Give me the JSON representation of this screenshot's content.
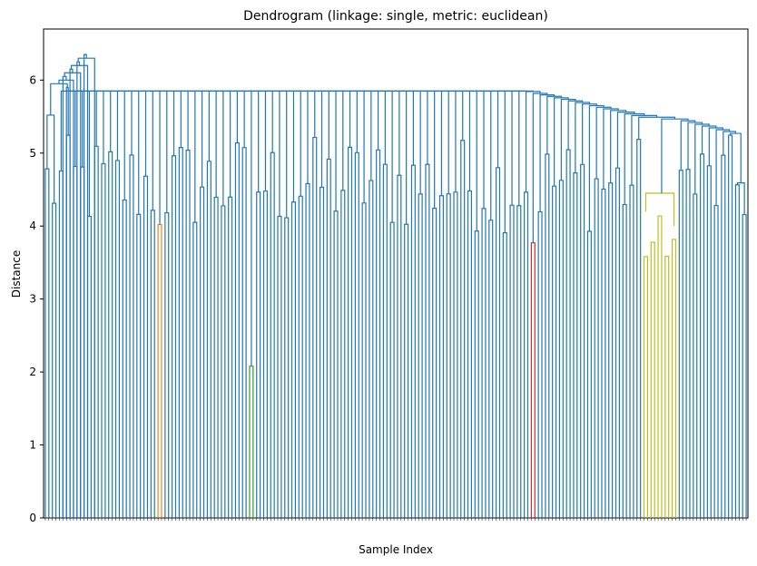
{
  "chart_data": {
    "type": "dendrogram",
    "title": "Dendrogram (linkage: single, metric: euclidean)",
    "xlabel": "Sample Index",
    "ylabel": "Distance",
    "ylim": [
      0,
      6.7
    ],
    "y_ticks": [
      0,
      1,
      2,
      3,
      4,
      5,
      6
    ],
    "grid": false,
    "leaf_count": 200,
    "link_color": "#1f77b4",
    "top_merges": [
      6.35,
      6.3,
      6.25,
      6.2,
      6.15,
      6.1,
      6.05,
      6.0,
      5.95,
      5.9,
      5.85
    ],
    "backbone_heights": [
      5.82,
      5.78,
      5.75,
      5.72,
      5.7,
      5.68,
      5.66,
      5.64,
      5.62,
      5.6,
      5.58,
      5.55,
      5.52,
      5.5,
      5.48,
      5.45,
      5.42,
      5.4,
      5.38,
      5.35,
      5.32,
      5.3,
      5.28,
      5.25,
      5.22,
      5.2
    ],
    "colored_clusters": [
      {
        "color": "#ff7f0e",
        "height": 4.02,
        "leaves": 2
      },
      {
        "color": "#2ca02c",
        "height": 2.08,
        "leaves": 2
      },
      {
        "color": "#d62728",
        "height": 3.77,
        "leaves": 2
      },
      {
        "color": "#9467bd",
        "height": 4.12,
        "leaves": 2
      },
      {
        "color": "#8c564b",
        "height": 4.42,
        "leaves": 2
      },
      {
        "color": "#e377c2",
        "height": 4.4,
        "leaves": 2
      },
      {
        "color": "#7f7f7f",
        "height": 4.25,
        "leaves": 2
      },
      {
        "color": "#bcbd22",
        "height": 4.45,
        "leaves": 9
      },
      {
        "color": "#17becf",
        "height": 4.17,
        "leaves": 2
      }
    ]
  }
}
